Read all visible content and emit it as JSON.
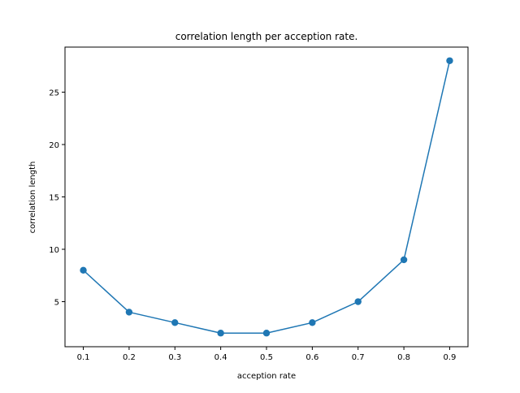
{
  "chart_data": {
    "type": "line",
    "title": "correlation length per acception rate.",
    "xlabel": "acception rate",
    "ylabel": "correlation length",
    "x": [
      0.1,
      0.2,
      0.3,
      0.4,
      0.5,
      0.6,
      0.7,
      0.8,
      0.9
    ],
    "series": [
      {
        "values": [
          8,
          4,
          3,
          2,
          2,
          3,
          5,
          9,
          28
        ]
      }
    ],
    "xlim": [
      0.06,
      0.94
    ],
    "ylim": [
      0.7,
      29.3
    ],
    "xticks": [
      0.1,
      0.2,
      0.3,
      0.4,
      0.5,
      0.6,
      0.7,
      0.8,
      0.9
    ],
    "xtick_labels": [
      "0.1",
      "0.2",
      "0.3",
      "0.4",
      "0.5",
      "0.6",
      "0.7",
      "0.8",
      "0.9"
    ],
    "yticks": [
      5,
      10,
      15,
      20,
      25
    ],
    "ytick_labels": [
      "5",
      "10",
      "15",
      "20",
      "25"
    ],
    "grid": false,
    "markers": "circle",
    "line_color": "#1f77b4"
  }
}
